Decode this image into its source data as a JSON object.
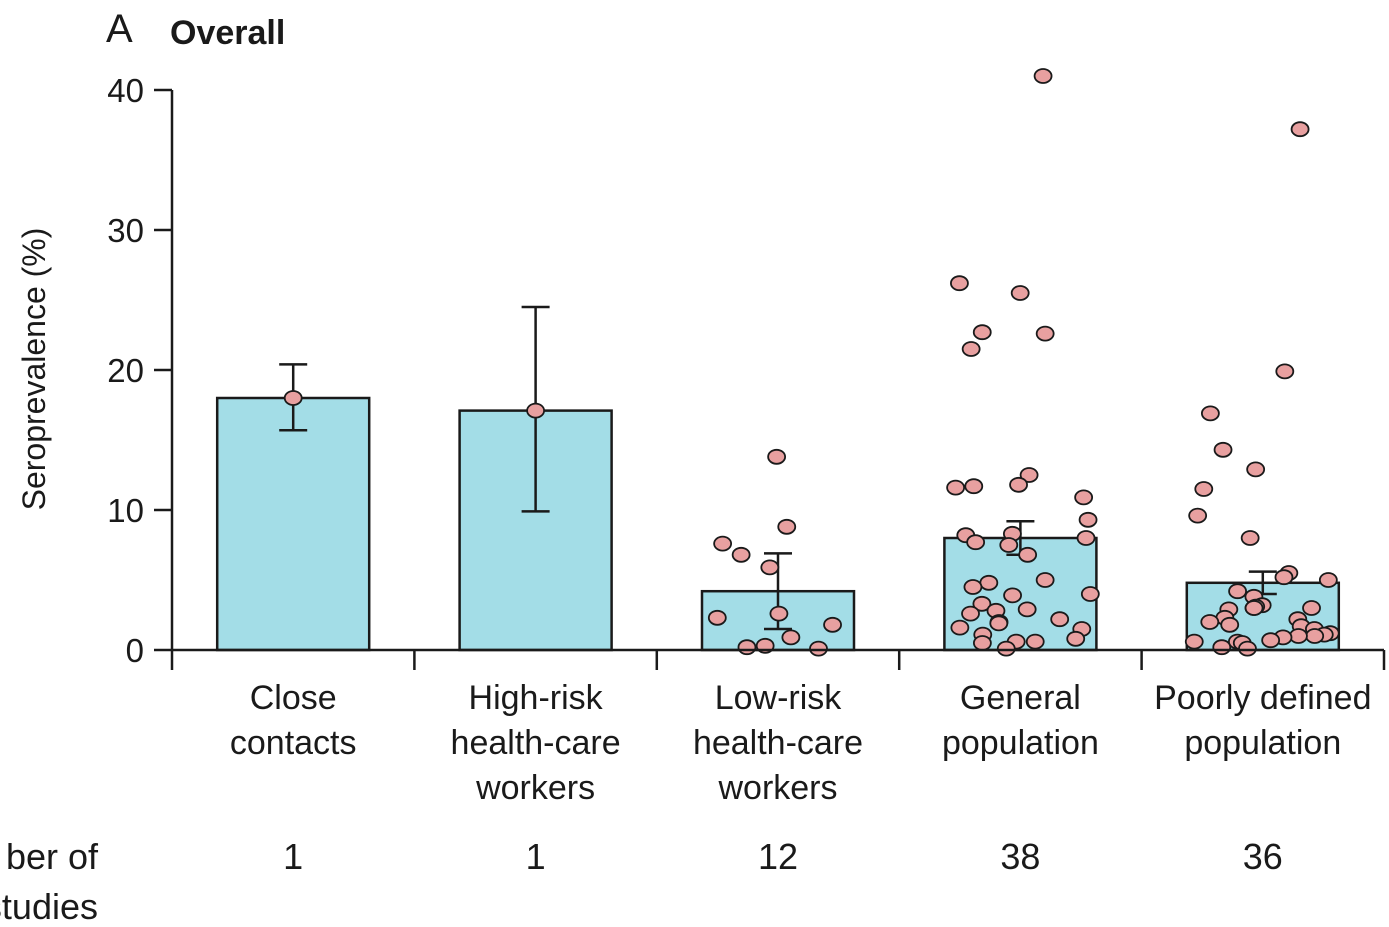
{
  "chart_data": {
    "type": "bar",
    "panel_letter": "A",
    "title": "Overall",
    "ylabel": "Seroprevalence (%)",
    "ylim": [
      0,
      40
    ],
    "yticks": [
      "0",
      "10",
      "20",
      "30",
      "40"
    ],
    "categories": [
      [
        "Close",
        "contacts"
      ],
      [
        "High-risk",
        "health-care",
        "workers"
      ],
      [
        "Low-risk",
        "health-care",
        "workers"
      ],
      [
        "General",
        "population"
      ],
      [
        "Poorly defined",
        "population"
      ]
    ],
    "values": [
      18.0,
      17.1,
      4.2,
      8.0,
      4.8
    ],
    "error_low": [
      15.7,
      9.9,
      1.5,
      6.8,
      4.0
    ],
    "error_high": [
      20.4,
      24.5,
      6.9,
      9.2,
      5.6
    ],
    "count_label": [
      "ber of",
      "studies"
    ],
    "counts": [
      "1",
      "1",
      "12",
      "38",
      "36"
    ],
    "points": [
      [
        18.0
      ],
      [
        17.1
      ],
      [
        13.8,
        8.8,
        7.6,
        6.8,
        5.9,
        2.6,
        2.3,
        1.8,
        0.9,
        0.3,
        0.2,
        0.1
      ],
      [
        41.0,
        26.2,
        25.5,
        22.7,
        22.6,
        21.5,
        12.5,
        11.8,
        11.7,
        11.6,
        10.9,
        9.3,
        8.2,
        8.3,
        8.0,
        7.7,
        7.5,
        6.8,
        5.0,
        4.8,
        4.5,
        4.0,
        3.9,
        3.3,
        2.9,
        2.8,
        2.6,
        2.2,
        2.0,
        1.9,
        1.6,
        1.5,
        1.1,
        0.8,
        0.6,
        0.5,
        0.6,
        0.1
      ],
      [
        37.2,
        19.9,
        16.9,
        14.3,
        12.9,
        11.5,
        9.6,
        8.0,
        5.5,
        5.2,
        5.0,
        4.2,
        3.8,
        3.2,
        3.0,
        3.0,
        3.1,
        3.0,
        2.9,
        2.3,
        2.2,
        2.0,
        1.8,
        1.7,
        1.5,
        1.2,
        1.1,
        1.0,
        1.0,
        0.9,
        0.7,
        0.6,
        0.6,
        0.5,
        0.2,
        0.1
      ]
    ],
    "bar_color": "#a3dde7",
    "point_color": "#e8a0a0",
    "grid": false,
    "legend": "none"
  }
}
